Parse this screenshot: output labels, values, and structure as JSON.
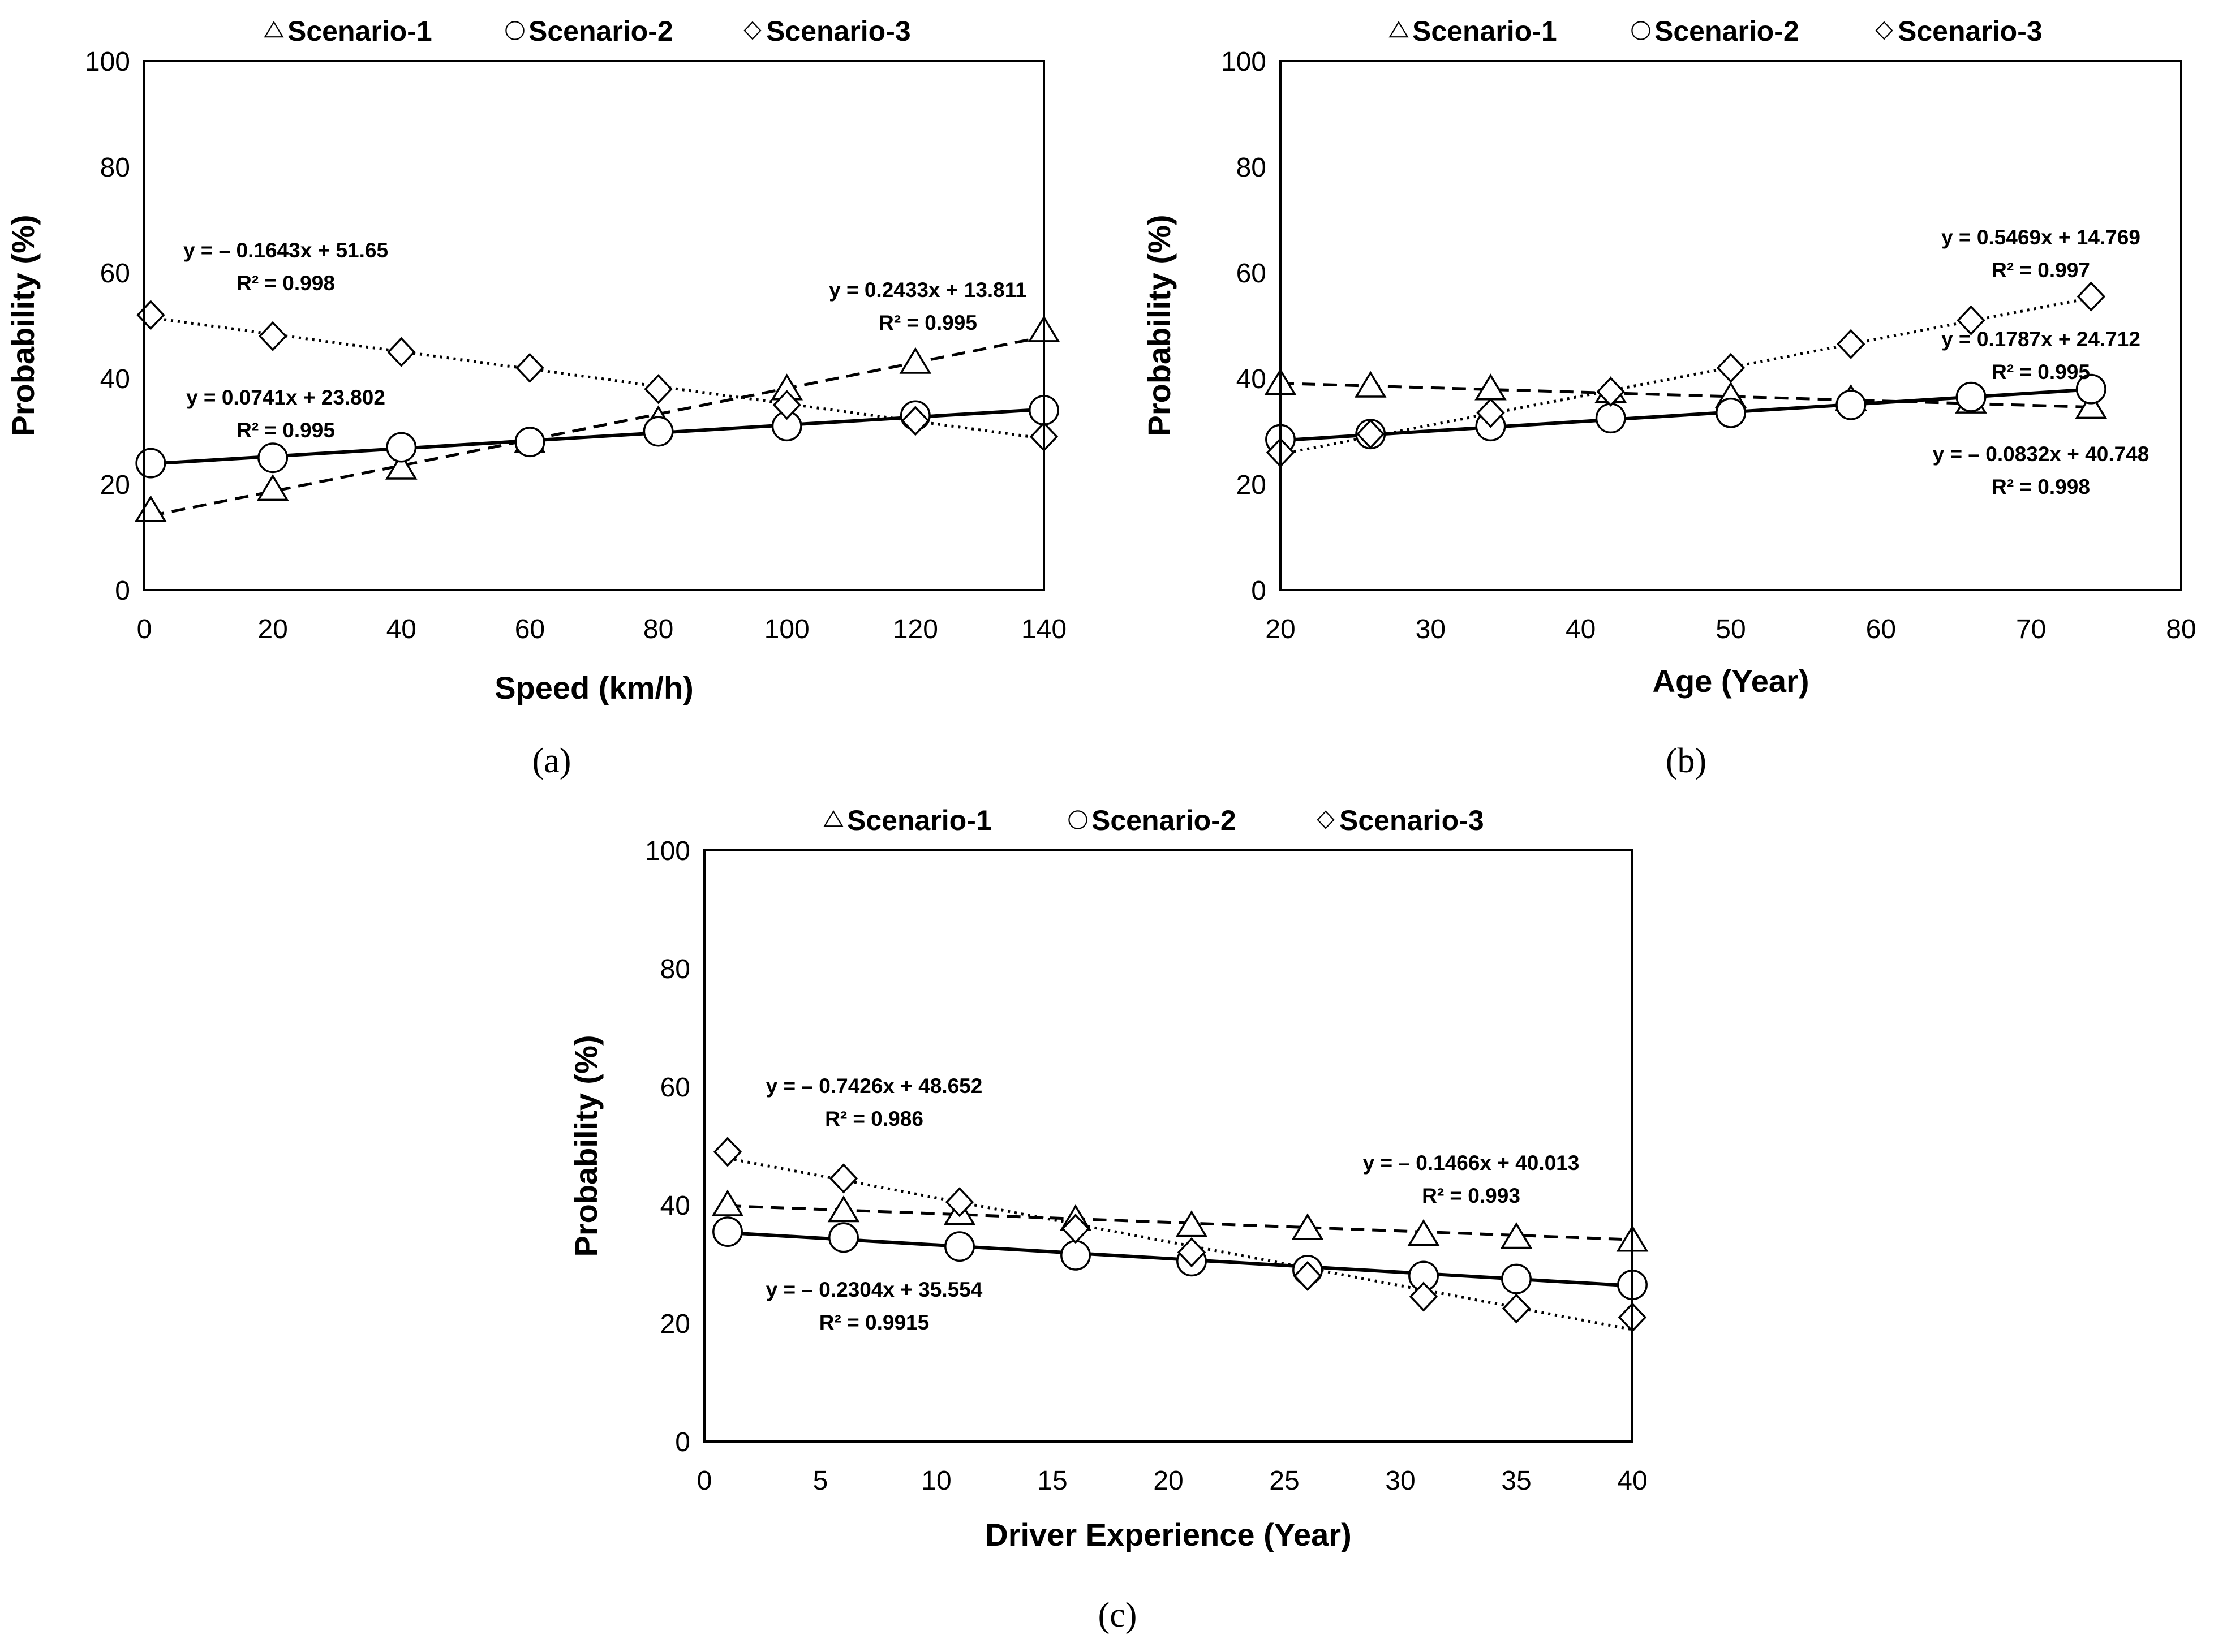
{
  "chart_data": [
    {
      "panel": "a",
      "caption": "(a)",
      "type": "line",
      "xlabel": "Speed (km/h)",
      "ylabel": "Probability (%)",
      "xlim": [
        0,
        140
      ],
      "ylim": [
        0,
        100
      ],
      "xticks": [
        0,
        20,
        40,
        60,
        80,
        100,
        120,
        140
      ],
      "yticks": [
        0,
        20,
        40,
        60,
        80,
        100
      ],
      "legend_position": "top",
      "series": [
        {
          "name": "Scenario-1",
          "marker": "triangle",
          "line": "dashed",
          "x": [
            1,
            20,
            40,
            60,
            80,
            100,
            120,
            140
          ],
          "y": [
            15,
            19,
            23,
            28,
            32,
            38,
            43,
            49
          ],
          "fit": {
            "slope": 0.2433,
            "intercept": 13.811
          },
          "equation": "y = 0.2433x + 13.811",
          "r2": "R² = 0.995"
        },
        {
          "name": "Scenario-2",
          "marker": "circle",
          "line": "solid",
          "x": [
            1,
            20,
            40,
            60,
            80,
            100,
            120,
            140
          ],
          "y": [
            24,
            25,
            27,
            28,
            30,
            31,
            33,
            34
          ],
          "fit": {
            "slope": 0.0741,
            "intercept": 23.802
          },
          "equation": "y = 0.0741x + 23.802",
          "r2": "R² = 0.995"
        },
        {
          "name": "Scenario-3",
          "marker": "diamond",
          "line": "dotted",
          "x": [
            1,
            20,
            40,
            60,
            80,
            100,
            120,
            140
          ],
          "y": [
            52,
            48,
            45,
            42,
            38,
            35,
            32,
            29
          ],
          "fit": {
            "slope": -0.1643,
            "intercept": 51.65
          },
          "equation": "y = – 0.1643x + 51.65",
          "r2": "R² = 0.998"
        }
      ]
    },
    {
      "panel": "b",
      "caption": "(b)",
      "type": "line",
      "xlabel": "Age (Year)",
      "ylabel": "Probability (%)",
      "xlim": [
        20,
        80
      ],
      "ylim": [
        0,
        100
      ],
      "xticks": [
        20,
        30,
        40,
        50,
        60,
        70,
        80
      ],
      "yticks": [
        0,
        20,
        40,
        60,
        80,
        100
      ],
      "legend_position": "top",
      "series": [
        {
          "name": "Scenario-1",
          "marker": "triangle",
          "line": "dashed",
          "x": [
            20,
            26,
            34,
            42,
            50,
            58,
            66,
            74
          ],
          "y": [
            39,
            38.5,
            38,
            37.5,
            36.5,
            36,
            35.5,
            34.5
          ],
          "fit": {
            "slope": -0.0832,
            "intercept": 40.748
          },
          "equation": "y = – 0.0832x + 40.748",
          "r2": "R² = 0.998"
        },
        {
          "name": "Scenario-2",
          "marker": "circle",
          "line": "solid",
          "x": [
            20,
            26,
            34,
            42,
            50,
            58,
            66,
            74
          ],
          "y": [
            28.5,
            29.5,
            31,
            32.5,
            33.5,
            35,
            36.5,
            38
          ],
          "fit": {
            "slope": 0.1787,
            "intercept": 24.712
          },
          "equation": "y = 0.1787x + 24.712",
          "r2": "R² = 0.995"
        },
        {
          "name": "Scenario-3",
          "marker": "diamond",
          "line": "dotted",
          "x": [
            20,
            26,
            34,
            42,
            50,
            58,
            66,
            74
          ],
          "y": [
            26,
            29.5,
            33.5,
            37.5,
            42,
            46.5,
            51,
            55.5
          ],
          "fit": {
            "slope": 0.5469,
            "intercept": 14.769
          },
          "equation": "y = 0.5469x + 14.769",
          "r2": "R² = 0.997"
        }
      ]
    },
    {
      "panel": "c",
      "caption": "(c)",
      "type": "line",
      "xlabel": "Driver Experience (Year)",
      "ylabel": "Probability (%)",
      "xlim": [
        0,
        40
      ],
      "ylim": [
        0,
        100
      ],
      "xticks": [
        0,
        5,
        10,
        15,
        20,
        25,
        30,
        35,
        40
      ],
      "yticks": [
        0,
        20,
        40,
        60,
        80,
        100
      ],
      "legend_position": "top",
      "series": [
        {
          "name": "Scenario-1",
          "marker": "triangle",
          "line": "dashed",
          "x": [
            1,
            6,
            11,
            16,
            21,
            26,
            31,
            35,
            40
          ],
          "y": [
            40,
            39,
            38.5,
            37.5,
            36.5,
            36,
            35,
            34.5,
            34
          ],
          "fit": {
            "slope": -0.1466,
            "intercept": 40.013
          },
          "equation": "y = – 0.1466x + 40.013",
          "r2": "R² = 0.993"
        },
        {
          "name": "Scenario-2",
          "marker": "circle",
          "line": "solid",
          "x": [
            1,
            6,
            11,
            16,
            21,
            26,
            31,
            35,
            40
          ],
          "y": [
            35.5,
            34.5,
            33,
            31.5,
            30.5,
            29,
            28,
            27.5,
            26.5
          ],
          "fit": {
            "slope": -0.2304,
            "intercept": 35.554
          },
          "equation": "y = – 0.2304x + 35.554",
          "r2": "R² = 0.9915"
        },
        {
          "name": "Scenario-3",
          "marker": "diamond",
          "line": "dotted",
          "x": [
            1,
            6,
            11,
            16,
            21,
            26,
            31,
            35,
            40
          ],
          "y": [
            49,
            44.5,
            40.5,
            36,
            32,
            28,
            24.5,
            22.5,
            21
          ],
          "fit": {
            "slope": -0.7426,
            "intercept": 48.652
          },
          "equation": "y = – 0.7426x + 48.652",
          "r2": "R² = 0.986"
        }
      ]
    }
  ]
}
